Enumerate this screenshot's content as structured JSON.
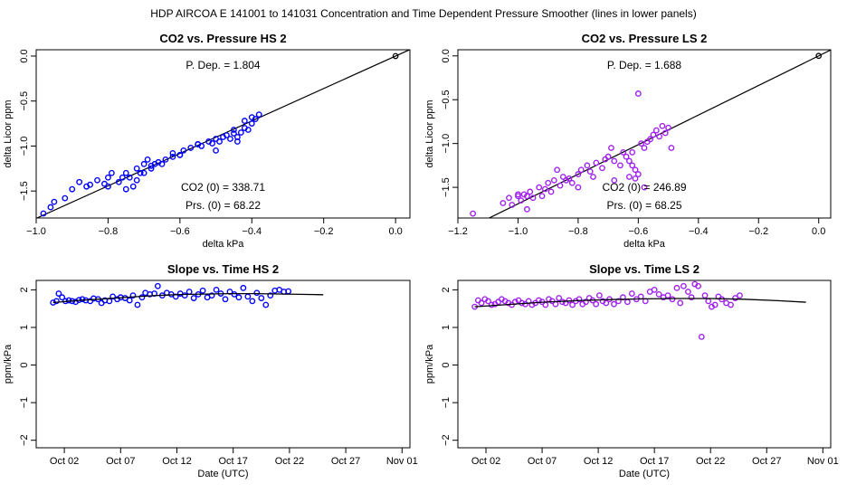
{
  "page_title": "HDP   AIRCOA E   141001 to 141031   Concentration and Time Dependent Pressure Smoother (lines in lower panels)",
  "colors": {
    "hs": "#0000ff",
    "ls": "#a020f0",
    "line": "#000000"
  },
  "chart_data": [
    {
      "id": "p1",
      "type": "scatter",
      "title": "CO2 vs. Pressure HS 2",
      "xlabel": "delta kPa",
      "ylabel": "delta Licor ppm",
      "xlim": [
        -1.0,
        0.04
      ],
      "ylim": [
        -1.8,
        0.07
      ],
      "xticks": [
        -1.0,
        -0.8,
        -0.6,
        -0.4,
        -0.2,
        0.0
      ],
      "xtick_labels": [
        "−1.0",
        "−0.8",
        "−0.6",
        "−0.4",
        "−0.2",
        "0.0"
      ],
      "yticks": [
        0.0,
        -0.5,
        -1.0,
        -1.5
      ],
      "ytick_labels": [
        "0.0",
        "−0.5",
        "−1.0",
        "−1.5"
      ],
      "color_key": "hs",
      "fit_line": {
        "slope": 1.804,
        "intercept": 0.0
      },
      "reference_point": [
        0.0,
        0.0
      ],
      "annotations": {
        "p_dep": "P. Dep. =  1.804",
        "co2_0": "CO2 (0) =  338.71",
        "prs_0": "Prs. (0) =  68.22"
      },
      "points": [
        [
          -0.98,
          -1.75
        ],
        [
          -0.96,
          -1.68
        ],
        [
          -0.95,
          -1.62
        ],
        [
          -0.92,
          -1.58
        ],
        [
          -0.9,
          -1.48
        ],
        [
          -0.88,
          -1.4
        ],
        [
          -0.86,
          -1.45
        ],
        [
          -0.83,
          -1.38
        ],
        [
          -0.81,
          -1.42
        ],
        [
          -0.8,
          -1.35
        ],
        [
          -0.79,
          -1.3
        ],
        [
          -0.77,
          -1.4
        ],
        [
          -0.76,
          -1.35
        ],
        [
          -0.75,
          -1.3
        ],
        [
          -0.74,
          -1.35
        ],
        [
          -0.73,
          -1.45
        ],
        [
          -0.72,
          -1.25
        ],
        [
          -0.71,
          -1.3
        ],
        [
          -0.7,
          -1.2
        ],
        [
          -0.69,
          -1.15
        ],
        [
          -0.68,
          -1.25
        ],
        [
          -0.67,
          -1.2
        ],
        [
          -0.66,
          -1.18
        ],
        [
          -0.64,
          -1.15
        ],
        [
          -0.62,
          -1.12
        ],
        [
          -0.6,
          -1.1
        ],
        [
          -0.59,
          -1.05
        ],
        [
          -0.57,
          -1.02
        ],
        [
          -0.55,
          -0.98
        ],
        [
          -0.54,
          -1.0
        ],
        [
          -0.52,
          -0.95
        ],
        [
          -0.51,
          -0.97
        ],
        [
          -0.5,
          -0.92
        ],
        [
          -0.49,
          -0.95
        ],
        [
          -0.48,
          -0.9
        ],
        [
          -0.47,
          -0.88
        ],
        [
          -0.46,
          -0.92
        ],
        [
          -0.45,
          -0.86
        ],
        [
          -0.44,
          -0.9
        ],
        [
          -0.43,
          -0.85
        ],
        [
          -0.42,
          -0.8
        ],
        [
          -0.41,
          -0.82
        ],
        [
          -0.4,
          -0.75
        ],
        [
          -0.39,
          -0.7
        ],
        [
          -0.38,
          -0.65
        ],
        [
          -0.44,
          -0.95
        ],
        [
          -0.5,
          -1.05
        ],
        [
          -0.6,
          -1.1
        ],
        [
          -0.7,
          -1.3
        ],
        [
          -0.8,
          -1.45
        ],
        [
          -0.75,
          -1.48
        ],
        [
          -0.65,
          -1.2
        ],
        [
          -0.55,
          -0.98
        ],
        [
          -0.45,
          -0.82
        ],
        [
          -0.4,
          -0.68
        ],
        [
          -0.42,
          -0.72
        ],
        [
          -0.62,
          -1.08
        ],
        [
          -0.68,
          -1.22
        ],
        [
          -0.72,
          -1.38
        ],
        [
          -0.85,
          -1.43
        ]
      ]
    },
    {
      "id": "p2",
      "type": "scatter",
      "title": "CO2 vs. Pressure LS 2",
      "xlabel": "delta kPa",
      "ylabel": "delta Licor ppm",
      "xlim": [
        -1.2,
        0.04
      ],
      "ylim": [
        -1.85,
        0.07
      ],
      "xticks": [
        -1.2,
        -1.0,
        -0.8,
        -0.6,
        -0.4,
        -0.2,
        0.0
      ],
      "xtick_labels": [
        "−1.2",
        "−1.0",
        "−0.8",
        "−0.6",
        "−0.4",
        "−0.2",
        "0.0"
      ],
      "yticks": [
        0.0,
        -0.5,
        -1.0,
        -1.5
      ],
      "ytick_labels": [
        "0.0",
        "−0.5",
        "−1.0",
        "−1.5"
      ],
      "color_key": "ls",
      "fit_line": {
        "slope": 1.688,
        "intercept": 0.0
      },
      "reference_point": [
        0.0,
        0.0
      ],
      "annotations": {
        "p_dep": "P. Dep. =  1.688",
        "co2_0": "CO2 (0) =  246.89",
        "prs_0": "Prs. (0) =  68.25"
      },
      "points": [
        [
          -1.15,
          -1.8
        ],
        [
          -1.05,
          -1.68
        ],
        [
          -1.03,
          -1.62
        ],
        [
          -1.02,
          -1.7
        ],
        [
          -1.0,
          -1.6
        ],
        [
          -0.99,
          -1.65
        ],
        [
          -0.98,
          -1.58
        ],
        [
          -0.97,
          -1.75
        ],
        [
          -0.96,
          -1.55
        ],
        [
          -0.95,
          -1.62
        ],
        [
          -0.93,
          -1.5
        ],
        [
          -0.92,
          -1.6
        ],
        [
          -0.9,
          -1.45
        ],
        [
          -0.89,
          -1.55
        ],
        [
          -0.88,
          -1.42
        ],
        [
          -0.86,
          -1.48
        ],
        [
          -0.85,
          -1.38
        ],
        [
          -0.83,
          -1.4
        ],
        [
          -0.82,
          -1.45
        ],
        [
          -0.8,
          -1.35
        ],
        [
          -0.79,
          -1.3
        ],
        [
          -0.77,
          -1.25
        ],
        [
          -0.76,
          -1.32
        ],
        [
          -0.74,
          -1.22
        ],
        [
          -0.72,
          -1.28
        ],
        [
          -0.7,
          -1.15
        ],
        [
          -0.69,
          -1.05
        ],
        [
          -0.68,
          -1.2
        ],
        [
          -0.66,
          -1.25
        ],
        [
          -0.65,
          -1.1
        ],
        [
          -0.64,
          -1.15
        ],
        [
          -0.63,
          -1.2
        ],
        [
          -0.62,
          -1.25
        ],
        [
          -0.61,
          -1.3
        ],
        [
          -0.6,
          -1.35
        ],
        [
          -0.59,
          -1.0
        ],
        [
          -0.58,
          -1.05
        ],
        [
          -0.57,
          -0.98
        ],
        [
          -0.56,
          -0.95
        ],
        [
          -0.55,
          -0.9
        ],
        [
          -0.54,
          -0.85
        ],
        [
          -0.53,
          -0.92
        ],
        [
          -0.52,
          -0.8
        ],
        [
          -0.51,
          -0.88
        ],
        [
          -0.5,
          -0.82
        ],
        [
          -0.49,
          -1.05
        ],
        [
          -0.6,
          -0.43
        ],
        [
          -0.62,
          -1.1
        ],
        [
          -0.71,
          -1.18
        ],
        [
          -0.84,
          -1.42
        ],
        [
          -0.91,
          -1.52
        ],
        [
          -0.97,
          -1.6
        ],
        [
          -1.0,
          -1.58
        ],
        [
          -0.87,
          -1.3
        ],
        [
          -0.75,
          -1.38
        ],
        [
          -0.68,
          -1.42
        ],
        [
          -0.61,
          -1.4
        ],
        [
          -0.63,
          -1.38
        ],
        [
          -0.58,
          -1.5
        ],
        [
          -0.8,
          -1.5
        ]
      ]
    },
    {
      "id": "p3",
      "type": "scatter",
      "title": "Slope vs. Time HS 2",
      "xlabel": "Date (UTC)",
      "ylabel": "ppm/kPa",
      "xlim": [
        -1.5,
        31.7
      ],
      "ylim": [
        -2.2,
        2.25
      ],
      "xticks": [
        1,
        6,
        11,
        16,
        21,
        26,
        31
      ],
      "xtick_labels": [
        "Oct 02",
        "Oct 07",
        "Oct 12",
        "Oct 17",
        "Oct 22",
        "Oct 27",
        "Nov 01"
      ],
      "yticks": [
        -2,
        -1,
        0,
        1,
        2
      ],
      "ytick_labels": [
        "−2",
        "−1",
        "0",
        "1",
        "2"
      ],
      "color_key": "hs",
      "smoother": [
        [
          0.0,
          1.66
        ],
        [
          2.0,
          1.71
        ],
        [
          4.0,
          1.75
        ],
        [
          6.0,
          1.79
        ],
        [
          8.0,
          1.83
        ],
        [
          10.0,
          1.86
        ],
        [
          12.0,
          1.88
        ],
        [
          14.0,
          1.89
        ],
        [
          16.0,
          1.9
        ],
        [
          18.0,
          1.9
        ],
        [
          20.0,
          1.89
        ],
        [
          22.0,
          1.88
        ],
        [
          24.0,
          1.87
        ]
      ],
      "points": [
        [
          0.0,
          1.66
        ],
        [
          0.3,
          1.7
        ],
        [
          0.5,
          1.9
        ],
        [
          0.8,
          1.8
        ],
        [
          1.1,
          1.7
        ],
        [
          1.4,
          1.72
        ],
        [
          1.7,
          1.7
        ],
        [
          2.0,
          1.68
        ],
        [
          2.3,
          1.73
        ],
        [
          2.6,
          1.75
        ],
        [
          2.9,
          1.72
        ],
        [
          3.3,
          1.7
        ],
        [
          3.6,
          1.77
        ],
        [
          4.0,
          1.75
        ],
        [
          4.3,
          1.65
        ],
        [
          4.6,
          1.72
        ],
        [
          5.0,
          1.7
        ],
        [
          5.3,
          1.82
        ],
        [
          5.7,
          1.75
        ],
        [
          6.0,
          1.8
        ],
        [
          6.4,
          1.78
        ],
        [
          6.8,
          1.72
        ],
        [
          7.1,
          1.85
        ],
        [
          7.5,
          1.6
        ],
        [
          7.9,
          1.8
        ],
        [
          8.2,
          1.92
        ],
        [
          8.6,
          1.88
        ],
        [
          9.0,
          1.9
        ],
        [
          9.3,
          2.1
        ],
        [
          9.7,
          1.85
        ],
        [
          10.1,
          1.92
        ],
        [
          10.5,
          1.88
        ],
        [
          10.9,
          1.82
        ],
        [
          11.3,
          1.9
        ],
        [
          11.7,
          1.85
        ],
        [
          12.1,
          1.95
        ],
        [
          12.5,
          1.78
        ],
        [
          12.9,
          1.88
        ],
        [
          13.3,
          1.98
        ],
        [
          13.7,
          1.8
        ],
        [
          14.1,
          1.85
        ],
        [
          14.5,
          2.0
        ],
        [
          14.9,
          1.9
        ],
        [
          15.3,
          1.75
        ],
        [
          15.7,
          1.95
        ],
        [
          16.1,
          1.88
        ],
        [
          16.5,
          1.8
        ],
        [
          16.9,
          2.05
        ],
        [
          17.3,
          1.82
        ],
        [
          17.7,
          1.7
        ],
        [
          18.1,
          1.92
        ],
        [
          18.5,
          1.78
        ],
        [
          18.9,
          1.6
        ],
        [
          19.3,
          1.85
        ],
        [
          19.7,
          1.98
        ],
        [
          20.1,
          2.0
        ],
        [
          20.5,
          1.95
        ],
        [
          20.9,
          1.96
        ]
      ]
    },
    {
      "id": "p4",
      "type": "scatter",
      "title": "Slope vs. Time LS 2",
      "xlabel": "Date (UTC)",
      "ylabel": "ppm/kPa",
      "xlim": [
        -1.5,
        31.7
      ],
      "ylim": [
        -2.2,
        2.25
      ],
      "xticks": [
        1,
        6,
        11,
        16,
        21,
        26,
        31
      ],
      "xtick_labels": [
        "Oct 02",
        "Oct 07",
        "Oct 12",
        "Oct 17",
        "Oct 22",
        "Oct 27",
        "Nov 01"
      ],
      "yticks": [
        -2,
        -1,
        0,
        1,
        2
      ],
      "ytick_labels": [
        "−2",
        "−1",
        "0",
        "1",
        "2"
      ],
      "color_key": "ls",
      "smoother": [
        [
          0.0,
          1.55
        ],
        [
          3.0,
          1.61
        ],
        [
          6.0,
          1.67
        ],
        [
          9.0,
          1.71
        ],
        [
          12.0,
          1.74
        ],
        [
          15.0,
          1.76
        ],
        [
          18.0,
          1.77
        ],
        [
          21.0,
          1.77
        ],
        [
          24.0,
          1.75
        ],
        [
          27.0,
          1.71
        ],
        [
          29.5,
          1.67
        ]
      ],
      "points": [
        [
          0.0,
          1.55
        ],
        [
          0.3,
          1.72
        ],
        [
          0.6,
          1.65
        ],
        [
          0.9,
          1.75
        ],
        [
          1.2,
          1.7
        ],
        [
          1.5,
          1.6
        ],
        [
          1.8,
          1.62
        ],
        [
          2.1,
          1.68
        ],
        [
          2.4,
          1.75
        ],
        [
          2.7,
          1.7
        ],
        [
          3.0,
          1.65
        ],
        [
          3.3,
          1.6
        ],
        [
          3.6,
          1.68
        ],
        [
          3.9,
          1.72
        ],
        [
          4.2,
          1.65
        ],
        [
          4.5,
          1.62
        ],
        [
          4.8,
          1.7
        ],
        [
          5.1,
          1.6
        ],
        [
          5.4,
          1.65
        ],
        [
          5.7,
          1.72
        ],
        [
          6.0,
          1.68
        ],
        [
          6.3,
          1.6
        ],
        [
          6.6,
          1.75
        ],
        [
          6.9,
          1.7
        ],
        [
          7.2,
          1.62
        ],
        [
          7.5,
          1.78
        ],
        [
          7.8,
          1.68
        ],
        [
          8.1,
          1.65
        ],
        [
          8.4,
          1.72
        ],
        [
          8.7,
          1.6
        ],
        [
          9.0,
          1.7
        ],
        [
          9.3,
          1.75
        ],
        [
          9.6,
          1.62
        ],
        [
          9.9,
          1.68
        ],
        [
          10.2,
          1.78
        ],
        [
          10.5,
          1.72
        ],
        [
          10.8,
          1.62
        ],
        [
          11.1,
          1.85
        ],
        [
          11.4,
          1.7
        ],
        [
          11.7,
          1.65
        ],
        [
          12.0,
          1.75
        ],
        [
          12.4,
          1.62
        ],
        [
          12.8,
          1.7
        ],
        [
          13.2,
          1.8
        ],
        [
          13.6,
          1.68
        ],
        [
          14.0,
          1.9
        ],
        [
          14.4,
          1.75
        ],
        [
          14.8,
          1.82
        ],
        [
          15.2,
          1.7
        ],
        [
          15.6,
          1.95
        ],
        [
          16.0,
          2.0
        ],
        [
          16.4,
          1.88
        ],
        [
          16.8,
          1.8
        ],
        [
          17.2,
          1.85
        ],
        [
          17.6,
          1.75
        ],
        [
          18.0,
          2.05
        ],
        [
          18.3,
          1.65
        ],
        [
          18.6,
          2.1
        ],
        [
          19.0,
          1.95
        ],
        [
          19.3,
          1.8
        ],
        [
          19.6,
          2.15
        ],
        [
          19.9,
          2.1
        ],
        [
          20.2,
          0.75
        ],
        [
          20.5,
          1.85
        ],
        [
          20.8,
          1.7
        ],
        [
          21.1,
          1.55
        ],
        [
          21.4,
          1.6
        ],
        [
          21.7,
          1.82
        ],
        [
          22.0,
          1.75
        ],
        [
          22.4,
          1.65
        ],
        [
          22.8,
          1.6
        ],
        [
          23.2,
          1.78
        ],
        [
          23.6,
          1.85
        ]
      ]
    }
  ]
}
